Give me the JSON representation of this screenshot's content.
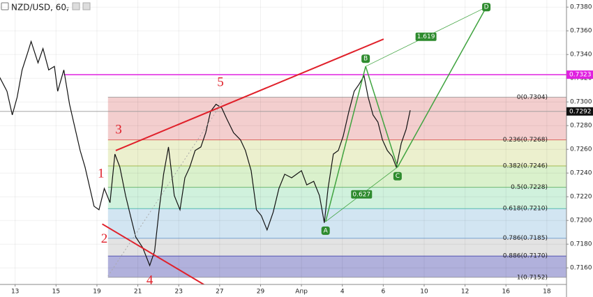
{
  "chart_data": {
    "type": "line",
    "title": "NZD/USD, 60,",
    "x": [
      -0.38,
      -0.2,
      -0.07,
      0.05,
      0.17,
      0.31,
      0.39,
      0.56,
      0.68,
      0.82,
      0.96,
      1.04,
      1.19,
      1.33,
      1.45,
      1.59,
      1.71,
      1.81,
      1.93,
      2.05,
      2.18,
      2.32,
      2.44,
      2.56,
      2.7,
      2.82,
      2.95,
      3.12,
      3.29,
      3.41,
      3.52,
      3.63,
      3.75,
      3.89,
      4.03,
      4.15,
      4.27,
      4.4,
      4.54,
      4.66,
      4.78,
      4.91,
      5.05,
      5.17,
      5.34,
      5.51,
      5.63,
      5.77,
      5.9,
      6.02,
      6.16,
      6.31,
      6.45,
      6.59,
      6.76,
      6.88,
      7.0,
      7.13,
      7.3,
      7.44,
      7.56,
      7.65,
      7.78,
      7.9,
      8.02,
      8.16,
      8.29,
      8.41,
      8.53,
      8.63,
      8.75,
      8.87,
      8.98,
      9.1,
      9.22,
      9.32,
      9.44,
      9.56,
      9.66
    ],
    "series": [
      {
        "color": "#111111",
        "values": [
          0.7321,
          0.7309,
          0.7289,
          0.7304,
          0.7327,
          0.7342,
          0.7351,
          0.7333,
          0.7345,
          0.7327,
          0.733,
          0.7309,
          0.7327,
          0.7298,
          0.728,
          0.7259,
          0.7245,
          0.723,
          0.7212,
          0.7209,
          0.7227,
          0.7215,
          0.7256,
          0.7245,
          0.7221,
          0.7204,
          0.7186,
          0.7177,
          0.7162,
          0.7174,
          0.7209,
          0.7239,
          0.7262,
          0.7221,
          0.7209,
          0.7236,
          0.7245,
          0.7259,
          0.7262,
          0.7274,
          0.7292,
          0.7298,
          0.7295,
          0.7286,
          0.7274,
          0.7268,
          0.7259,
          0.7242,
          0.7209,
          0.7204,
          0.7192,
          0.7207,
          0.7227,
          0.7239,
          0.7236,
          0.7239,
          0.7242,
          0.723,
          0.7233,
          0.7221,
          0.7198,
          0.7227,
          0.7256,
          0.7259,
          0.7271,
          0.7292,
          0.7309,
          0.7315,
          0.7322,
          0.7304,
          0.7289,
          0.7283,
          0.7268,
          0.7259,
          0.7254,
          0.7245,
          0.7265,
          0.7277,
          0.7293
        ]
      }
    ],
    "xlim": [
      -0.37,
      13.48
    ],
    "ylim": [
      0.7146,
      0.7386
    ],
    "xticks": [
      {
        "value": 0,
        "label": "13"
      },
      {
        "value": 1,
        "label": "15"
      },
      {
        "value": 2,
        "label": "19"
      },
      {
        "value": 3,
        "label": "21"
      },
      {
        "value": 4,
        "label": "23"
      },
      {
        "value": 5,
        "label": "27"
      },
      {
        "value": 6,
        "label": "29"
      },
      {
        "value": 7,
        "label": "Апр"
      },
      {
        "value": 8,
        "label": "4"
      },
      {
        "value": 9,
        "label": "6"
      },
      {
        "value": 10,
        "label": "10"
      },
      {
        "value": 11,
        "label": "12"
      },
      {
        "value": 12,
        "label": "16"
      },
      {
        "value": 13,
        "label": "18"
      }
    ],
    "yticks": [
      {
        "value": 0.716,
        "label": "0.7160"
      },
      {
        "value": 0.718,
        "label": "0.7180"
      },
      {
        "value": 0.72,
        "label": "0.7200"
      },
      {
        "value": 0.722,
        "label": "0.7220"
      },
      {
        "value": 0.724,
        "label": "0.7240"
      },
      {
        "value": 0.726,
        "label": "0.7260"
      },
      {
        "value": 0.728,
        "label": "0.7280"
      },
      {
        "value": 0.73,
        "label": "0.7300"
      },
      {
        "value": 0.732,
        "label": "0.7320"
      },
      {
        "value": 0.734,
        "label": "0.7340"
      },
      {
        "value": 0.736,
        "label": "0.7360"
      },
      {
        "value": 0.738,
        "label": "0.7380"
      }
    ],
    "grid": true,
    "fib": {
      "x_start": 2.27,
      "levels": [
        {
          "value": 0.7304,
          "label": "0(0.7304)",
          "color": "#888888",
          "fill": "#f2c9c9"
        },
        {
          "value": 0.7268,
          "label": "0.236(0.7268)",
          "color": "#d32f2f",
          "fill": "#eaeec9"
        },
        {
          "value": 0.7246,
          "label": "0.382(0.7246)",
          "color": "#8ca31c",
          "fill": "#d6efc6"
        },
        {
          "value": 0.7228,
          "label": "0.5(0.7228)",
          "color": "#43a047",
          "fill": "#cbefd9"
        },
        {
          "value": 0.721,
          "label": "0.618(0.7210)",
          "color": "#26a69a",
          "fill": "#cde2f1"
        },
        {
          "value": 0.7185,
          "label": "0.786(0.7185)",
          "color": "#4a86c8",
          "fill": "#e0e0e0"
        },
        {
          "value": 0.717,
          "label": "0.886(0.7170)",
          "color": "#2a2aa0",
          "fill": "#a9a9d8"
        },
        {
          "value": 0.7152,
          "label": "1(0.7152)",
          "color": "#888888"
        }
      ]
    },
    "price_lines": [
      {
        "value": 0.7323,
        "x_start": 1.19,
        "color": "#e020e0"
      },
      {
        "value": 0.7292,
        "x_start": -0.37,
        "color": "#999999",
        "tag": "#111111"
      }
    ],
    "trend_lines": [
      {
        "x": [
          2.46,
          9.01
        ],
        "y": [
          0.7259,
          0.7353
        ],
        "color": "#e0202a"
      },
      {
        "x": [
          2.13,
          4.66
        ],
        "y": [
          0.7197,
          0.7145
        ],
        "color": "#e0202a"
      },
      {
        "x": [
          2.27,
          5.09
        ],
        "y": [
          0.7153,
          0.7301
        ],
        "color": "#aaaaaa",
        "dashed": true
      }
    ],
    "wave_labels": [
      {
        "text": "1",
        "x": 2.1,
        "y": 0.7239
      },
      {
        "text": "2",
        "x": 2.18,
        "y": 0.7184
      },
      {
        "text": "3",
        "x": 2.53,
        "y": 0.7276
      },
      {
        "text": "4",
        "x": 3.29,
        "y": 0.7149
      },
      {
        "text": "5",
        "x": 5.02,
        "y": 0.7316
      }
    ],
    "pattern": {
      "color": "#3fa33f",
      "points": [
        {
          "label": "A",
          "x": 7.59,
          "y": 0.7199
        },
        {
          "label": "B",
          "x": 8.57,
          "y": 0.733
        },
        {
          "label": "C",
          "x": 9.35,
          "y": 0.7245
        },
        {
          "label": "D",
          "x": 11.52,
          "y": 0.738
        }
      ],
      "ratios": [
        {
          "value": 0.627,
          "from": 0,
          "to": 2
        },
        {
          "value": 1.619,
          "from": 1,
          "to": 3
        }
      ]
    }
  }
}
